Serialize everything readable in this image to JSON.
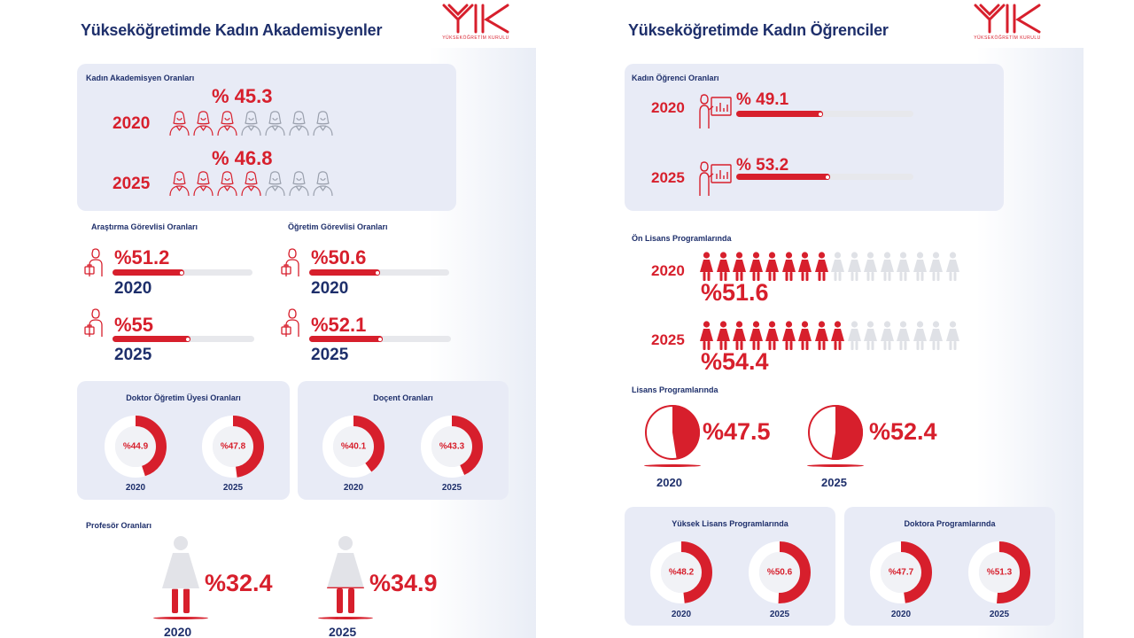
{
  "colors": {
    "red": "#d71f2c",
    "navy": "#1e2f6b",
    "light_gray": "#dfe1e6",
    "box_bg": "#e8ebf6"
  },
  "logo": {
    "text": "YÜKSEKÖĞRETİM KURULU"
  },
  "left": {
    "title": "Yükseköğretimde Kadın Akademisyenler",
    "academics": {
      "label": "Kadın Akademisyen Oranları",
      "rows": [
        {
          "year": "2020",
          "pct_text": "% 45.3",
          "value": 45.3,
          "filled": 3
        },
        {
          "year": "2025",
          "pct_text": "% 46.8",
          "value": 46.8,
          "filled": 4
        }
      ]
    },
    "research": {
      "label": "Araştırma Görevlisi Oranları",
      "rows": [
        {
          "year": "2020",
          "pct_text": "%51.2",
          "value": 51.2
        },
        {
          "year": "2025",
          "pct_text": "%55",
          "value": 55
        }
      ]
    },
    "lecturer": {
      "label": "Öğretim Görevlisi Oranları",
      "rows": [
        {
          "year": "2020",
          "pct_text": "%50.6",
          "value": 50.6
        },
        {
          "year": "2025",
          "pct_text": "%52.1",
          "value": 52.1
        }
      ]
    },
    "doctor_faculty": {
      "label": "Doktor Öğretim Üyesi Oranları",
      "donuts": [
        {
          "year": "2020",
          "pct_text": "%44.9",
          "value": 44.9
        },
        {
          "year": "2025",
          "pct_text": "%47.8",
          "value": 47.8
        }
      ]
    },
    "docent": {
      "label": "Doçent Oranları",
      "donuts": [
        {
          "year": "2020",
          "pct_text": "%40.1",
          "value": 40.1
        },
        {
          "year": "2025",
          "pct_text": "%43.3",
          "value": 43.3
        }
      ]
    },
    "professor": {
      "label": "Profesör Oranları",
      "items": [
        {
          "year": "2020",
          "pct_text": "%32.4",
          "value": 32.4
        },
        {
          "year": "2025",
          "pct_text": "%34.9",
          "value": 34.9
        }
      ]
    }
  },
  "right": {
    "title": "Yükseköğretimde Kadın Öğrenciler",
    "students": {
      "label": "Kadın Öğrenci Oranları",
      "rows": [
        {
          "year": "2020",
          "pct_text": "% 49.1",
          "value": 49.1
        },
        {
          "year": "2025",
          "pct_text": "% 53.2",
          "value": 53.2
        }
      ]
    },
    "associate": {
      "label": "Ön Lisans Programlarında",
      "rows": [
        {
          "year": "2020",
          "pct_text": "%51.6",
          "value": 51.6,
          "filled": 8,
          "total": 16
        },
        {
          "year": "2025",
          "pct_text": "%54.4",
          "value": 54.4,
          "filled": 9,
          "total": 16
        }
      ]
    },
    "bachelor": {
      "label": "Lisans Programlarında",
      "items": [
        {
          "year": "2020",
          "pct_text": "%47.5",
          "value": 47.5
        },
        {
          "year": "2025",
          "pct_text": "%52.4",
          "value": 52.4
        }
      ]
    },
    "masters": {
      "label": "Yüksek Lisans Programlarında",
      "donuts": [
        {
          "year": "2020",
          "pct_text": "%48.2",
          "value": 48.2
        },
        {
          "year": "2025",
          "pct_text": "%50.6",
          "value": 50.6
        }
      ]
    },
    "doctorate": {
      "label": "Doktora Programlarında",
      "donuts": [
        {
          "year": "2020",
          "pct_text": "%47.7",
          "value": 47.7
        },
        {
          "year": "2025",
          "pct_text": "%51.3",
          "value": 51.3
        }
      ]
    }
  },
  "chart_data": [
    {
      "type": "bar",
      "title": "Kadın Akademisyen Oranları",
      "categories": [
        "2020",
        "2025"
      ],
      "values": [
        45.3,
        46.8
      ]
    },
    {
      "type": "bar",
      "title": "Araştırma Görevlisi Oranları",
      "categories": [
        "2020",
        "2025"
      ],
      "values": [
        51.2,
        55
      ]
    },
    {
      "type": "bar",
      "title": "Öğretim Görevlisi Oranları",
      "categories": [
        "2020",
        "2025"
      ],
      "values": [
        50.6,
        52.1
      ]
    },
    {
      "type": "pie",
      "title": "Doktor Öğretim Üyesi Oranları",
      "categories": [
        "2020",
        "2025"
      ],
      "values": [
        44.9,
        47.8
      ]
    },
    {
      "type": "pie",
      "title": "Doçent Oranları",
      "categories": [
        "2020",
        "2025"
      ],
      "values": [
        40.1,
        43.3
      ]
    },
    {
      "type": "bar",
      "title": "Profesör Oranları",
      "categories": [
        "2020",
        "2025"
      ],
      "values": [
        32.4,
        34.9
      ]
    },
    {
      "type": "bar",
      "title": "Kadın Öğrenci Oranları",
      "categories": [
        "2020",
        "2025"
      ],
      "values": [
        49.1,
        53.2
      ]
    },
    {
      "type": "bar",
      "title": "Ön Lisans Programlarında",
      "categories": [
        "2020",
        "2025"
      ],
      "values": [
        51.6,
        54.4
      ]
    },
    {
      "type": "pie",
      "title": "Lisans Programlarında",
      "categories": [
        "2020",
        "2025"
      ],
      "values": [
        47.5,
        52.4
      ]
    },
    {
      "type": "pie",
      "title": "Yüksek Lisans Programlarında",
      "categories": [
        "2020",
        "2025"
      ],
      "values": [
        48.2,
        50.6
      ]
    },
    {
      "type": "pie",
      "title": "Doktora Programlarında",
      "categories": [
        "2020",
        "2025"
      ],
      "values": [
        47.7,
        51.3
      ]
    }
  ]
}
